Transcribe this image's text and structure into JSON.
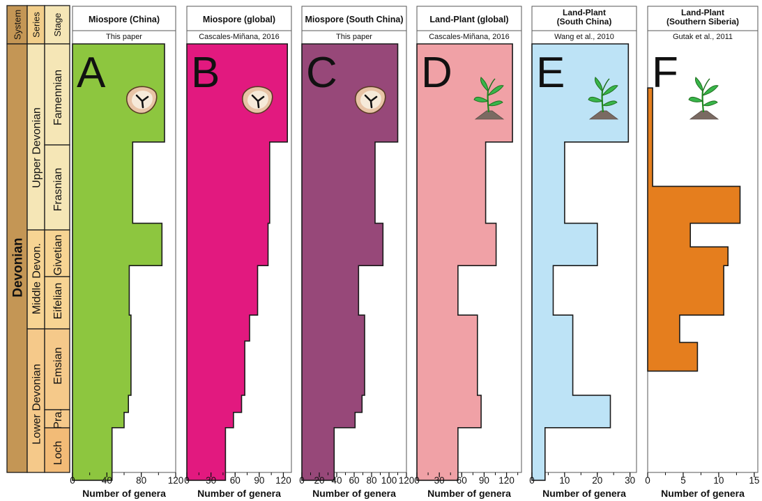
{
  "strat": {
    "headers": [
      "System",
      "Series",
      "Stage"
    ],
    "system": "Devonian",
    "series": [
      "Upper Devonian",
      "Middle Devon.",
      "Lower Devonian"
    ],
    "stages": [
      "Famennian",
      "Frasnian",
      "Givetian",
      "Eifelian",
      "Emsian",
      "Pra.",
      "Loch"
    ]
  },
  "colors": {
    "strat_system": "#c49655",
    "strat_series": "#f2ce8a",
    "strat_upper": "#f5e6b6",
    "strat_middle": "#f7d493",
    "strat_lower": "#f5c98a",
    "strat_loch": "#f2bb77",
    "outline": "#1a1a1a"
  },
  "chart_data": [
    {
      "type": "area",
      "panel_letter": "A",
      "title": "Miospore (China)",
      "source": "This paper",
      "icon": "spore-icon",
      "color": "#8dc63f",
      "xlabel": "Number of genera",
      "xlim": [
        0,
        120
      ],
      "xticks": [
        0,
        40,
        80,
        120
      ],
      "y_categories": [
        "Famennian",
        "Frasnian",
        "Givetian",
        "Eifelian",
        "Emsian",
        "Pra.",
        "Loch"
      ],
      "values": [
        107,
        70,
        104,
        66,
        68,
        60,
        46
      ],
      "steps": [
        [
          0,
          107
        ],
        [
          0.345,
          107
        ],
        [
          0.345,
          70
        ],
        [
          0.631,
          70
        ],
        [
          0.631,
          104
        ],
        [
          0.78,
          104
        ],
        [
          0.78,
          66
        ],
        [
          0.954,
          66
        ],
        [
          0.954,
          68
        ],
        [
          1.236,
          68
        ],
        [
          1.236,
          65
        ],
        [
          1.296,
          65
        ],
        [
          1.296,
          60
        ],
        [
          1.35,
          60
        ],
        [
          1.35,
          46
        ],
        [
          1.535,
          46
        ]
      ]
    },
    {
      "type": "area",
      "panel_letter": "B",
      "title": "Miospore (global)",
      "source": "Cascales-Miñana, 2016",
      "icon": "spore-icon",
      "color": "#e2197f",
      "xlabel": "Number of genera",
      "xlim": [
        0,
        130
      ],
      "xticks": [
        0,
        30,
        60,
        90,
        120
      ],
      "y_categories": [
        "Famennian",
        "Frasnian",
        "Givetian",
        "Eifelian",
        "Emsian",
        "Pra.",
        "Loch"
      ],
      "values": [
        125,
        103,
        101,
        78,
        72,
        58,
        48
      ],
      "steps": [
        [
          0,
          125
        ],
        [
          0.345,
          125
        ],
        [
          0.345,
          103
        ],
        [
          0.631,
          103
        ],
        [
          0.631,
          101
        ],
        [
          0.78,
          101
        ],
        [
          0.78,
          88
        ],
        [
          0.954,
          88
        ],
        [
          0.954,
          78
        ],
        [
          1.045,
          78
        ],
        [
          1.045,
          72
        ],
        [
          1.236,
          72
        ],
        [
          1.236,
          68
        ],
        [
          1.296,
          68
        ],
        [
          1.296,
          58
        ],
        [
          1.35,
          58
        ],
        [
          1.35,
          48
        ],
        [
          1.535,
          48
        ]
      ]
    },
    {
      "type": "area",
      "panel_letter": "C",
      "title": "Miospore (South China)",
      "source": "This paper",
      "icon": "spore-icon",
      "color": "#974879",
      "xlabel": "Number of genera",
      "xlim": [
        0,
        120
      ],
      "xticks": [
        0,
        20,
        40,
        60,
        80,
        100,
        120
      ],
      "y_categories": [
        "Famennian",
        "Frasnian",
        "Givetian",
        "Eifelian",
        "Emsian",
        "Pra.",
        "Loch"
      ],
      "values": [
        110,
        84,
        93,
        65,
        72,
        61,
        37
      ],
      "steps": [
        [
          0,
          110
        ],
        [
          0.345,
          110
        ],
        [
          0.345,
          84
        ],
        [
          0.631,
          84
        ],
        [
          0.631,
          93
        ],
        [
          0.78,
          93
        ],
        [
          0.78,
          65
        ],
        [
          0.954,
          65
        ],
        [
          0.954,
          72
        ],
        [
          1.236,
          72
        ],
        [
          1.236,
          69
        ],
        [
          1.296,
          69
        ],
        [
          1.296,
          61
        ],
        [
          1.35,
          61
        ],
        [
          1.35,
          37
        ],
        [
          1.535,
          37
        ]
      ]
    },
    {
      "type": "area",
      "panel_letter": "D",
      "title": "Land-Plant (global)",
      "source": "Cascales-Miñana, 2016",
      "icon": "plant-icon",
      "color": "#f0a1a6",
      "xlabel": "Number of genera",
      "xlim": [
        0,
        140
      ],
      "xticks": [
        0,
        30,
        60,
        90,
        120
      ],
      "y_categories": [
        "Famennian",
        "Frasnian",
        "Givetian",
        "Eifelian",
        "Emsian",
        "Pra.",
        "Loch"
      ],
      "values": [
        128,
        92,
        106,
        55,
        81,
        86,
        55
      ],
      "steps": [
        [
          0,
          128
        ],
        [
          0.345,
          128
        ],
        [
          0.345,
          92
        ],
        [
          0.631,
          92
        ],
        [
          0.631,
          106
        ],
        [
          0.78,
          106
        ],
        [
          0.78,
          55
        ],
        [
          0.954,
          55
        ],
        [
          0.954,
          81
        ],
        [
          1.236,
          81
        ],
        [
          1.236,
          86
        ],
        [
          1.35,
          86
        ],
        [
          1.35,
          55
        ],
        [
          1.535,
          55
        ]
      ]
    },
    {
      "type": "area",
      "panel_letter": "E",
      "title": "Land-Plant\n(South China)",
      "source": "Wang et al., 2010",
      "icon": "plant-icon",
      "color": "#bde3f6",
      "xlabel": "Number of genera",
      "xlim": [
        0,
        32
      ],
      "xticks": [
        0,
        10,
        20,
        30
      ],
      "y_categories": [
        "Famennian",
        "Frasnian",
        "Givetian",
        "Eifelian",
        "Emsian",
        "Pra.",
        "Loch"
      ],
      "values": [
        29.5,
        10,
        20,
        6.5,
        12.5,
        24,
        4
      ],
      "steps": [
        [
          0,
          29.5
        ],
        [
          0.345,
          29.5
        ],
        [
          0.345,
          10
        ],
        [
          0.631,
          10
        ],
        [
          0.631,
          20
        ],
        [
          0.78,
          20
        ],
        [
          0.78,
          6.5
        ],
        [
          0.954,
          6.5
        ],
        [
          0.954,
          12.5
        ],
        [
          1.236,
          12.5
        ],
        [
          1.236,
          24
        ],
        [
          1.35,
          24
        ],
        [
          1.35,
          4
        ],
        [
          1.535,
          4
        ]
      ]
    },
    {
      "type": "area",
      "panel_letter": "F",
      "title": "Land-Plant\n(Southern Siberia)",
      "source": "Gutak et al., 2011",
      "icon": "plant-icon",
      "color": "#e57e1e",
      "xlabel": "Number of genera",
      "xlim": [
        0,
        15.5
      ],
      "xticks": [
        0,
        5,
        10,
        15
      ],
      "y_categories": [
        "Famennian",
        "Frasnian",
        "Givetian",
        "Eifelian",
        "Emsian",
        "Pra."
      ],
      "values": [
        0.7,
        13,
        11.3,
        10.7,
        4.5,
        7
      ],
      "steps": [
        [
          0.155,
          0.7
        ],
        [
          0.501,
          0.7
        ],
        [
          0.501,
          13
        ],
        [
          0.631,
          13
        ],
        [
          0.631,
          6
        ],
        [
          0.714,
          6
        ],
        [
          0.714,
          11.3
        ],
        [
          0.78,
          11.3
        ],
        [
          0.78,
          10.7
        ],
        [
          0.954,
          10.7
        ],
        [
          0.954,
          4.5
        ],
        [
          1.05,
          4.5
        ],
        [
          1.05,
          7
        ],
        [
          1.151,
          7
        ]
      ]
    }
  ]
}
